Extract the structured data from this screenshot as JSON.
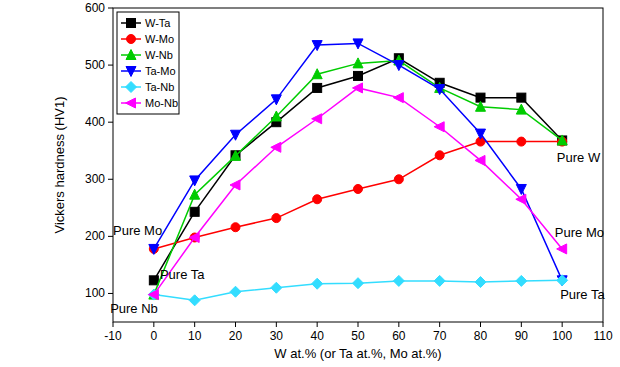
{
  "chart_data": {
    "type": "line",
    "x_label": "W at.% (or Ta at.%, Mo at.%)",
    "y_label": "Vickers hardness (HV1)",
    "x": [
      0,
      10,
      20,
      30,
      40,
      50,
      60,
      70,
      80,
      90,
      100
    ],
    "xlim": [
      -10,
      110
    ],
    "xticks": [
      -10,
      0,
      10,
      20,
      30,
      40,
      50,
      60,
      70,
      80,
      90,
      100,
      110
    ],
    "ylim": [
      50,
      600
    ],
    "yticks": [
      100,
      200,
      300,
      400,
      500,
      600
    ],
    "grid": false,
    "legend": "upper left",
    "series": [
      {
        "name": "W-Ta",
        "color": "#000000",
        "marker": "square",
        "line_style": "solid",
        "values": [
          123,
          243,
          342,
          400,
          460,
          481,
          512,
          469,
          443,
          443,
          368
        ]
      },
      {
        "name": "W-Mo",
        "color": "#ff0000",
        "marker": "circle",
        "line_style": "solid",
        "values": [
          178,
          198,
          216,
          232,
          265,
          283,
          300,
          342,
          366,
          366,
          366
        ]
      },
      {
        "name": "W-Nb",
        "color": "#00cc00",
        "marker": "triangle-up",
        "line_style": "solid",
        "values": [
          98,
          273,
          341,
          410,
          484,
          503,
          508,
          460,
          427,
          422,
          368
        ]
      },
      {
        "name": "Ta-Mo",
        "color": "#0000ff",
        "marker": "triangle-down",
        "line_style": "solid",
        "values": [
          178,
          298,
          378,
          440,
          535,
          538,
          500,
          458,
          380,
          283,
          123
        ]
      },
      {
        "name": "Ta-Nb",
        "color": "#33ddff",
        "marker": "diamond",
        "line_style": "solid",
        "values": [
          98,
          88,
          103,
          110,
          117,
          118,
          122,
          122,
          120,
          122,
          123
        ]
      },
      {
        "name": "Mo-Nb",
        "color": "#ff00ff",
        "marker": "triangle-left",
        "line_style": "solid",
        "values": [
          98,
          198,
          290,
          356,
          406,
          460,
          443,
          392,
          333,
          265,
          178
        ]
      }
    ],
    "annotations": [
      {
        "text": "Pure Mo",
        "x": -10,
        "y": 202
      },
      {
        "text": "Pure Ta",
        "x": 1.5,
        "y": 125
      },
      {
        "text": "Pure Nb",
        "x": -10.7,
        "y": 66
      },
      {
        "text": "Pure W",
        "x": 98.7,
        "y": 330
      },
      {
        "text": "Pure Mo",
        "x": 98.2,
        "y": 199
      },
      {
        "text": "Pure Ta",
        "x": 99.5,
        "y": 90
      }
    ]
  }
}
